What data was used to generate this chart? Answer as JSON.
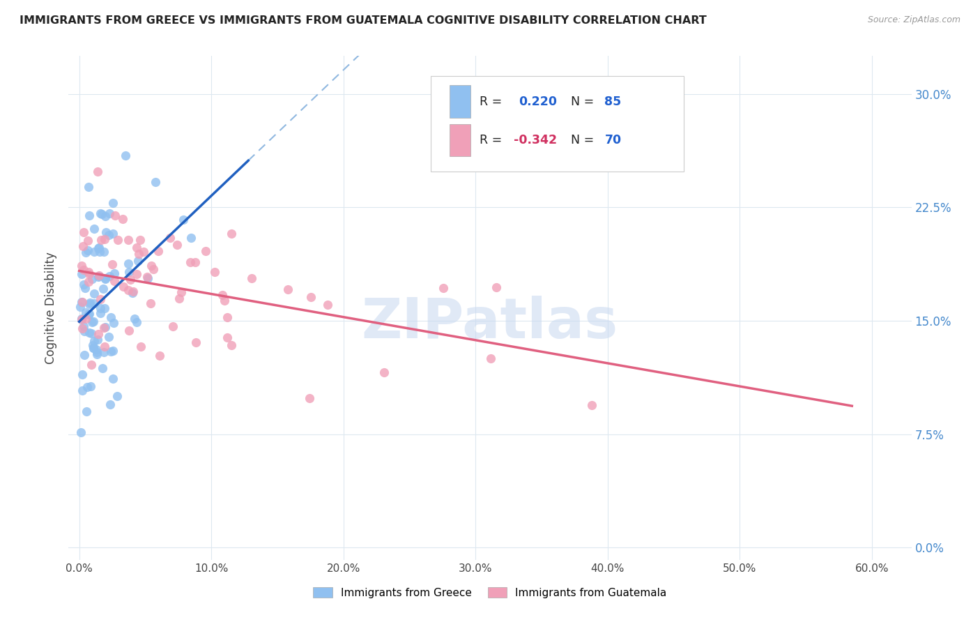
{
  "title": "IMMIGRANTS FROM GREECE VS IMMIGRANTS FROM GUATEMALA COGNITIVE DISABILITY CORRELATION CHART",
  "source": "Source: ZipAtlas.com",
  "ylabel_label": "Cognitive Disability",
  "greece_color": "#90c0f0",
  "guatemala_color": "#f0a0b8",
  "greece_line_color": "#2060c0",
  "greece_dash_color": "#90b8e0",
  "guatemala_line_color": "#e06080",
  "watermark": "ZIPatlas",
  "watermark_color": "#c8d8f0",
  "background_color": "#ffffff",
  "grid_color": "#dde8f0",
  "right_tick_color": "#4488cc",
  "legend_box_color": "#ffffff",
  "legend_border_color": "#cccccc",
  "R_label_color_greece": "#2060d0",
  "R_label_color_guatemala": "#d03060",
  "N_label_color": "#2060d0",
  "title_color": "#222222",
  "source_color": "#999999",
  "ytick_vals": [
    0.0,
    0.075,
    0.15,
    0.225,
    0.3
  ],
  "ytick_labels": [
    "0.0%",
    "7.5%",
    "15.0%",
    "22.5%",
    "30.0%"
  ],
  "xtick_vals": [
    0.0,
    0.1,
    0.2,
    0.3,
    0.4,
    0.5,
    0.6
  ],
  "xtick_labels": [
    "0.0%",
    "10.0%",
    "20.0%",
    "30.0%",
    "40.0%",
    "50.0%",
    "60.0%"
  ],
  "xlim": [
    -0.008,
    0.63
  ],
  "ylim": [
    -0.008,
    0.325
  ],
  "greece_N": 85,
  "guatemala_N": 70,
  "greece_R": 0.22,
  "guatemala_R": -0.342
}
